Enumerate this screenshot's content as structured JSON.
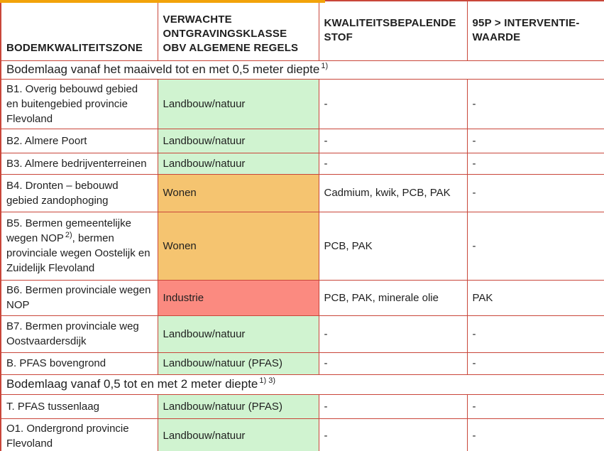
{
  "colors": {
    "green": "#d0f3d0",
    "orange": "#f5c470",
    "red": "#fb8a80",
    "border": "#c9463a",
    "accent_top": "#f2a30a"
  },
  "header": {
    "columns": [
      "BODEMKWALITEITSZONE",
      "VERWACHTE ONTGRAVINGSKLASSE OBV ALGEMENE REGELS",
      "KWALITEITSBEPALENDE STOF",
      "95P > INTERVENTIE-WAARDE"
    ]
  },
  "sections": [
    {
      "title": "Bodemlaag vanaf het maaiveld tot en met 0,5 meter diepte",
      "footnote_refs": "1)",
      "rows": [
        {
          "zone": "B1. Overig bebouwd gebied en buitengebied provincie Flevoland",
          "zone_sup": "",
          "zone_after": "",
          "klasse": "Landbouw/natuur",
          "klasse_color": "green",
          "stof": "-",
          "p95": "-"
        },
        {
          "zone": "B2. Almere Poort",
          "zone_sup": "",
          "zone_after": "",
          "klasse": "Landbouw/natuur",
          "klasse_color": "green",
          "stof": "-",
          "p95": "-"
        },
        {
          "zone": "B3. Almere bedrijventerreinen",
          "zone_sup": "",
          "zone_after": "",
          "klasse": "Landbouw/natuur",
          "klasse_color": "green",
          "stof": "-",
          "p95": "-"
        },
        {
          "zone": "B4. Dronten – bebouwd gebied zandophoging",
          "zone_sup": "",
          "zone_after": "",
          "klasse": "Wonen",
          "klasse_color": "orange",
          "stof": "Cadmium, kwik, PCB, PAK",
          "p95": "-"
        },
        {
          "zone": "B5. Bermen gemeentelijke wegen NOP",
          "zone_sup": "2)",
          "zone_after": ", bermen provinciale wegen Oostelijk en Zuidelijk Flevoland",
          "klasse": "Wonen",
          "klasse_color": "orange",
          "stof": "PCB, PAK",
          "p95": "-"
        },
        {
          "zone": "B6. Bermen provinciale wegen NOP",
          "zone_sup": "",
          "zone_after": "",
          "klasse": "Industrie",
          "klasse_color": "red",
          "stof": "PCB, PAK, minerale olie",
          "p95": "PAK"
        },
        {
          "zone": "B7. Bermen provinciale weg Oostvaardersdijk",
          "zone_sup": "",
          "zone_after": "",
          "klasse": "Landbouw/natuur",
          "klasse_color": "green",
          "stof": "-",
          "p95": "-"
        },
        {
          "zone": "B. PFAS bovengrond",
          "zone_sup": "",
          "zone_after": "",
          "klasse": "Landbouw/natuur (PFAS)",
          "klasse_color": "green",
          "stof": "-",
          "p95": "-"
        }
      ]
    },
    {
      "title": "Bodemlaag vanaf 0,5 tot en met 2 meter diepte",
      "footnote_refs": "1) 3)",
      "rows": [
        {
          "zone": "T. PFAS tussenlaag",
          "zone_sup": "",
          "zone_after": "",
          "klasse": "Landbouw/natuur (PFAS)",
          "klasse_color": "green",
          "stof": "-",
          "p95": "-"
        },
        {
          "zone": "O1. Ondergrond provincie Flevoland",
          "zone_sup": "",
          "zone_after": "",
          "klasse": "Landbouw/natuur",
          "klasse_color": "green",
          "stof": "-",
          "p95": "-"
        }
      ]
    }
  ]
}
